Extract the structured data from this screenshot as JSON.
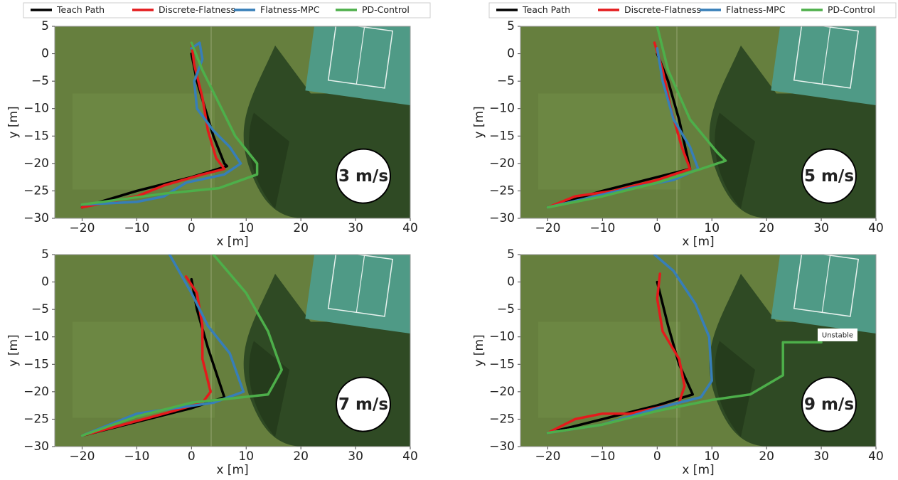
{
  "chart_data": [
    {
      "type": "line",
      "annotation": "3 m/s",
      "xlabel": "x [m]",
      "ylabel": "y [m]",
      "legend": "above",
      "xlim": [
        -25,
        40
      ],
      "ylim": [
        -30,
        5
      ],
      "xticks": [
        {
          "value": -20,
          "label": "−20"
        },
        {
          "value": -10,
          "label": "−10"
        },
        0,
        10,
        20,
        30,
        40
      ],
      "yticks": [
        5,
        0,
        {
          "value": -5,
          "label": "−5"
        },
        {
          "value": -10,
          "label": "−10"
        },
        {
          "value": -15,
          "label": "−15"
        },
        {
          "value": -20,
          "label": "−20"
        },
        {
          "value": -25,
          "label": "−25"
        },
        {
          "value": -30,
          "label": "−30"
        }
      ],
      "series": [
        {
          "name": "Teach Path",
          "color": "#000000",
          "x": [
            0,
            1,
            2.5,
            4,
            6,
            6.5,
            0,
            -10,
            -20
          ],
          "values": [
            0,
            -5,
            -10,
            -15,
            -20,
            -20.5,
            -22.5,
            -25,
            -28
          ]
        },
        {
          "name": "Discrete-Flatness",
          "color": "#e41a1c",
          "x": [
            0,
            0.5,
            2,
            3,
            4.5,
            6,
            2,
            -5,
            -10,
            -20
          ],
          "values": [
            2,
            -2,
            -8,
            -14,
            -19,
            -21,
            -22,
            -24,
            -26,
            -28
          ]
        },
        {
          "name": "Flatness-MPC",
          "color": "#377eb8",
          "x": [
            0,
            1.5,
            2,
            0.5,
            1,
            4,
            7,
            9,
            6,
            -1,
            -5,
            -10,
            -20
          ],
          "values": [
            1,
            2,
            -1,
            -5,
            -10,
            -14,
            -17,
            -20,
            -22,
            -23.5,
            -26,
            -27,
            -27.5
          ]
        },
        {
          "name": "PD-Control",
          "color": "#4daf4a",
          "x": [
            0,
            2,
            5,
            8,
            12,
            12,
            5,
            -5,
            -20
          ],
          "values": [
            2,
            -3,
            -9,
            -15,
            -20,
            -22,
            -24.5,
            -25.5,
            -27.5
          ]
        }
      ]
    },
    {
      "type": "line",
      "annotation": "5 m/s",
      "xlabel": "x [m]",
      "ylabel": "y [m]",
      "legend": "above",
      "xlim": [
        -25,
        40
      ],
      "ylim": [
        -30,
        5
      ],
      "xticks": [
        {
          "value": -20,
          "label": "−20"
        },
        {
          "value": -10,
          "label": "−10"
        },
        0,
        10,
        20,
        30,
        40
      ],
      "yticks": [
        5,
        0,
        {
          "value": -5,
          "label": "−5"
        },
        {
          "value": -10,
          "label": "−10"
        },
        {
          "value": -15,
          "label": "−15"
        },
        {
          "value": -20,
          "label": "−20"
        },
        {
          "value": -25,
          "label": "−25"
        },
        {
          "value": -30,
          "label": "−30"
        }
      ],
      "series": [
        {
          "name": "Teach Path",
          "color": "#000000",
          "x": [
            0,
            2,
            4,
            6,
            0,
            -10,
            -20
          ],
          "values": [
            0,
            -5,
            -12,
            -21,
            -22.5,
            -25,
            -28
          ]
        },
        {
          "name": "Discrete-Flatness",
          "color": "#e41a1c",
          "x": [
            -0.5,
            1,
            2.5,
            4.5,
            6,
            0,
            -8,
            -15,
            -20
          ],
          "values": [
            2,
            -3,
            -10,
            -17,
            -21,
            -23,
            -25,
            -26,
            -28
          ]
        },
        {
          "name": "Flatness-MPC",
          "color": "#377eb8",
          "x": [
            0,
            1,
            3,
            6,
            7.5,
            3,
            -5,
            -20
          ],
          "values": [
            1,
            -5,
            -12,
            -17,
            -21,
            -23,
            -24.5,
            -28
          ]
        },
        {
          "name": "PD-Control",
          "color": "#4daf4a",
          "x": [
            0,
            2,
            6,
            11,
            12.5,
            8,
            0,
            -10,
            -20
          ],
          "values": [
            5,
            -3,
            -12,
            -18,
            -19.5,
            -21,
            -23.5,
            -26,
            -28
          ]
        }
      ]
    },
    {
      "type": "line",
      "annotation": "7 m/s",
      "xlabel": "x [m]",
      "ylabel": "y [m]",
      "xlim": [
        -25,
        40
      ],
      "ylim": [
        -30,
        5
      ],
      "xticks": [
        {
          "value": -20,
          "label": "−20"
        },
        {
          "value": -10,
          "label": "−10"
        },
        0,
        10,
        20,
        30,
        40
      ],
      "yticks": [
        5,
        0,
        {
          "value": -5,
          "label": "−5"
        },
        {
          "value": -10,
          "label": "−10"
        },
        {
          "value": -15,
          "label": "−15"
        },
        {
          "value": -20,
          "label": "−20"
        },
        {
          "value": -25,
          "label": "−25"
        },
        {
          "value": -30,
          "label": "−30"
        }
      ],
      "series": [
        {
          "name": "Teach Path",
          "color": "#000000",
          "x": [
            0,
            1,
            3,
            6,
            0,
            -10,
            -20
          ],
          "values": [
            0.5,
            -5,
            -12,
            -21,
            -23,
            -25.5,
            -28
          ]
        },
        {
          "name": "Discrete-Flatness",
          "color": "#e41a1c",
          "x": [
            -1,
            1,
            2,
            2,
            3.5,
            2,
            -5,
            -20
          ],
          "values": [
            1,
            -2,
            -8,
            -14,
            -20,
            -22,
            -24,
            -28
          ]
        },
        {
          "name": "Flatness-MPC",
          "color": "#377eb8",
          "x": [
            -4,
            0,
            3,
            7,
            9.5,
            4,
            -10,
            -20
          ],
          "values": [
            5,
            -2,
            -8,
            -13,
            -20,
            -22,
            -24,
            -28
          ]
        },
        {
          "name": "PD-Control",
          "color": "#4daf4a",
          "x": [
            4,
            10,
            14,
            16.5,
            14,
            0,
            -10,
            -20
          ],
          "values": [
            5,
            -2,
            -9,
            -16,
            -20.5,
            -22,
            -24.5,
            -28
          ]
        }
      ]
    },
    {
      "type": "line",
      "annotation": "9 m/s",
      "note": "Unstable",
      "xlabel": "x [m]",
      "ylabel": "y [m]",
      "xlim": [
        -25,
        40
      ],
      "ylim": [
        -30,
        5
      ],
      "xticks": [
        {
          "value": -20,
          "label": "−20"
        },
        {
          "value": -10,
          "label": "−10"
        },
        0,
        10,
        20,
        30,
        40
      ],
      "yticks": [
        5,
        0,
        {
          "value": -5,
          "label": "−5"
        },
        {
          "value": -10,
          "label": "−10"
        },
        {
          "value": -15,
          "label": "−15"
        },
        {
          "value": -20,
          "label": "−20"
        },
        {
          "value": -25,
          "label": "−25"
        },
        {
          "value": -30,
          "label": "−30"
        }
      ],
      "series": [
        {
          "name": "Teach Path",
          "color": "#000000",
          "x": [
            0,
            2,
            4,
            6.5,
            0,
            -10,
            -20
          ],
          "values": [
            0,
            -8,
            -15,
            -20.5,
            -22.5,
            -25,
            -27.5
          ]
        },
        {
          "name": "Discrete-Flatness",
          "color": "#e41a1c",
          "x": [
            0.5,
            0,
            1,
            4,
            5,
            4,
            -5,
            -10,
            -15,
            -20
          ],
          "values": [
            1.5,
            -3,
            -9,
            -14,
            -19,
            -22,
            -24,
            -24,
            -25,
            -27.5
          ]
        },
        {
          "name": "Flatness-MPC",
          "color": "#377eb8",
          "x": [
            -0.5,
            3,
            7,
            9.5,
            10,
            8,
            0,
            -10,
            -20
          ],
          "values": [
            5,
            2,
            -4,
            -10,
            -18,
            -21,
            -23,
            -26,
            -27.5
          ]
        },
        {
          "name": "PD-Control",
          "color": "#4daf4a",
          "x": [
            -20,
            -10,
            0,
            10,
            17,
            23,
            23,
            26,
            30
          ],
          "values": [
            -27.5,
            -26,
            -23.5,
            -21.5,
            -20.5,
            -17,
            -11,
            -11,
            -11
          ]
        }
      ]
    }
  ]
}
